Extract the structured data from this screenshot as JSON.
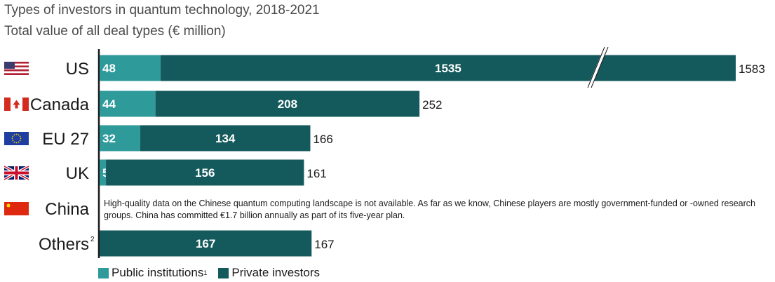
{
  "colors": {
    "public": "#2f9a9a",
    "private": "#145a5c",
    "axis": "#1a1a1a"
  },
  "chart_data": {
    "type": "bar",
    "orientation": "horizontal",
    "stacked": true,
    "title": "Types of investors in quantum technology, 2018-2021",
    "subtitle": "Total value of all deal types (€ million)",
    "axis_break": "US bar truncated (broken axis)",
    "categories": [
      "US",
      "Canada",
      "EU 27",
      "UK",
      "China",
      "Others"
    ],
    "category_footnotes": [
      "",
      "",
      "",
      "",
      "",
      "2"
    ],
    "flags": [
      "us-flag-icon",
      "canada-flag-icon",
      "eu-flag-icon",
      "uk-flag-icon",
      "china-flag-icon",
      ""
    ],
    "series": [
      {
        "name": "Public institutions",
        "footnote": "1",
        "values": [
          48,
          44,
          32,
          5,
          null,
          null
        ]
      },
      {
        "name": "Private investors",
        "footnote": "",
        "values": [
          1535,
          208,
          134,
          156,
          null,
          167
        ]
      }
    ],
    "totals": [
      1583,
      252,
      166,
      161,
      null,
      167
    ],
    "china_note": "High-quality data on the Chinese quantum computing landscape is not available. As far as we know, Chinese players are mostly government-funded or -owned research groups. China has committed €1.7 billion annually as part of its five-year plan.",
    "legend_position": "bottom-left",
    "grid": false
  }
}
